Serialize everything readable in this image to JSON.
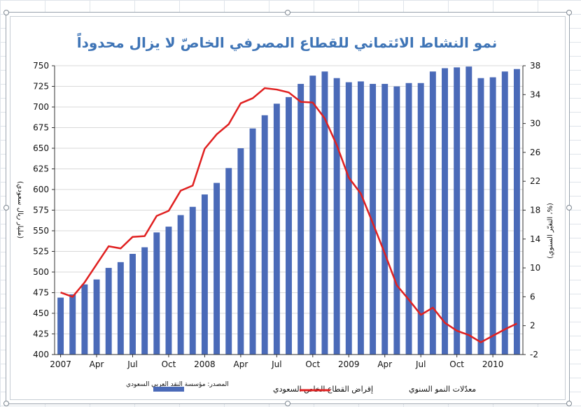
{
  "chart_data": {
    "type": "bar",
    "title": "نمو النشاط الائتماني للقطاع المصرفي الخاصّ لا يزال محدوداً",
    "ylabel_left": "(مليار ريال سعودي)",
    "ylabel_right": "(%، التغيّر السنوي)",
    "source": "المصدر: مؤسسة النقد العربي السعودي",
    "ylim_left": [
      400,
      750
    ],
    "ylim_right": [
      -2,
      38
    ],
    "yticks_left": [
      "750",
      "725",
      "700",
      "675",
      "650",
      "625",
      "600",
      "575",
      "550",
      "525",
      "500",
      "475",
      "450",
      "425",
      "400"
    ],
    "yticks_right": [
      "38",
      "34",
      "30",
      "26",
      "22",
      "18",
      "14",
      "10",
      "6",
      "2",
      "-2"
    ],
    "x_tick_labels": [
      {
        "label": "2007",
        "month": 1
      },
      {
        "label": "Apr",
        "month": 4
      },
      {
        "label": "Jul",
        "month": 7
      },
      {
        "label": "Oct",
        "month": 10
      },
      {
        "label": "2008",
        "month": 13
      },
      {
        "label": "Apr",
        "month": 16
      },
      {
        "label": "Jul",
        "month": 19
      },
      {
        "label": "Oct",
        "month": 22
      },
      {
        "label": "2009",
        "month": 25
      },
      {
        "label": "Apr",
        "month": 28
      },
      {
        "label": "Jul",
        "month": 31
      },
      {
        "label": "Oct",
        "month": 34
      },
      {
        "label": "2010",
        "month": 37
      }
    ],
    "series": [
      {
        "name": "إقراض القطاع الخاص السعودي",
        "type": "bar",
        "axis": "left",
        "color": "#4a6ab8",
        "values": [
          469,
          473,
          485,
          491,
          505,
          512,
          522,
          530,
          548,
          555,
          569,
          579,
          594,
          608,
          626,
          650,
          674,
          690,
          704,
          712,
          728,
          738,
          743,
          735,
          730,
          731,
          728,
          728,
          725,
          729,
          729,
          743,
          747,
          748,
          749,
          735,
          736,
          743,
          746
        ]
      },
      {
        "name": "معدّلات النمو السنوي",
        "type": "line",
        "axis": "right",
        "color": "#e02020",
        "values": [
          6.6,
          6.0,
          8.0,
          10.5,
          13.0,
          12.7,
          14.3,
          14.4,
          17.2,
          17.9,
          20.7,
          21.4,
          26.5,
          28.5,
          29.9,
          32.8,
          33.5,
          34.9,
          34.7,
          34.3,
          33.0,
          32.9,
          30.7,
          27.0,
          22.5,
          20.3,
          16.2,
          12.0,
          7.6,
          5.6,
          3.5,
          4.5,
          2.4,
          1.3,
          0.7,
          -0.3,
          0.6,
          1.5,
          2.3
        ]
      }
    ]
  }
}
